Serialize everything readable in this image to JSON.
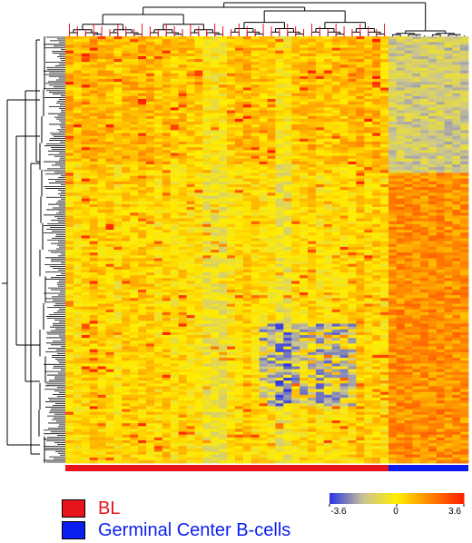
{
  "chart_data": {
    "type": "heatmap",
    "title": "",
    "xlabel": "",
    "ylabel": "",
    "row_dendrogram": true,
    "column_dendrogram": true,
    "groups": [
      {
        "name": "BL",
        "color": "#e8141c",
        "column_count": 40
      },
      {
        "name": "Germinal Center B-cells",
        "color": "#0a1ef0",
        "column_count": 10
      }
    ],
    "color_scale": {
      "min": -3.6,
      "mid": 0,
      "max": 3.6,
      "tick_labels": [
        "-3.6",
        "0",
        "3.6"
      ],
      "colors": [
        "#2a35e6",
        "#ffee00",
        "#ff1e00"
      ]
    },
    "visible_blocks": [
      {
        "group": "BL",
        "rows": "upper",
        "level": 0.8
      },
      {
        "group": "BL",
        "rows": "lower",
        "level": 0.3
      },
      {
        "group": "Germinal Center B-cells",
        "rows": "upper",
        "level": -1.4
      },
      {
        "group": "Germinal Center B-cells",
        "rows": "lower",
        "level": 1.6
      }
    ]
  },
  "legend": {
    "items": [
      {
        "label": "BL",
        "color": "#e8141c",
        "text_color": "#e8141c"
      },
      {
        "label": "Germinal Center B-cells",
        "color": "#0a1ef0",
        "text_color": "#0a1ef0"
      }
    ]
  }
}
